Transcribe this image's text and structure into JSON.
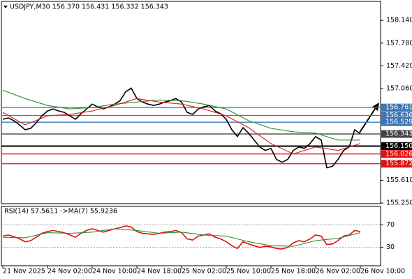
{
  "chart_data": [
    {
      "type": "line",
      "title": "USDJPY,M30  156.370 156.431 156.332 156.343",
      "x": [
        0,
        1,
        2,
        3,
        4,
        5,
        6,
        7,
        8,
        9,
        10,
        11,
        12,
        13,
        14,
        15,
        16,
        17,
        18,
        19,
        20,
        21,
        22,
        23,
        24,
        25,
        26,
        27,
        28,
        29,
        30,
        31,
        32,
        33,
        34,
        35,
        36,
        37,
        38,
        39,
        40,
        41,
        42,
        43,
        44,
        45,
        46,
        47,
        48,
        49,
        50,
        51,
        52,
        53,
        54,
        55,
        56,
        57,
        58,
        59,
        60,
        61,
        62,
        63,
        64
      ],
      "xlim": [
        -0.25,
        67.625
      ],
      "ylim": [
        155.24,
        158.44
      ],
      "yticks": [
        {
          "value": 158.14,
          "label": "158.140"
        },
        {
          "value": 157.78,
          "label": "157.780"
        },
        {
          "value": 157.42,
          "label": "157.420"
        },
        {
          "value": 157.06,
          "label": "157.060"
        },
        {
          "value": 155.61,
          "label": "155.610"
        },
        {
          "value": 155.25,
          "label": "155.250"
        }
      ],
      "levels": [
        {
          "value": 156.761,
          "color": "#3c78b4"
        },
        {
          "value": 156.636,
          "color": "#3c78b4"
        },
        {
          "value": 156.529,
          "color": "#3c78b4"
        },
        {
          "value": 156.343,
          "color": "#444444"
        },
        {
          "value": 156.15,
          "label": "156.150",
          "color": "#000000"
        },
        {
          "value": 156.026,
          "color": "#e01010"
        },
        {
          "value": 155.872,
          "color": "#e01010"
        }
      ],
      "series": [
        {
          "color": "#000000",
          "values": [
            156.575,
            156.596,
            156.553,
            156.487,
            156.41,
            156.432,
            156.52,
            156.629,
            156.706,
            156.739,
            156.706,
            156.684,
            156.629,
            156.575,
            156.662,
            156.739,
            156.815,
            156.772,
            156.739,
            156.772,
            156.815,
            156.87,
            157.012,
            157.067,
            156.903,
            156.848,
            156.815,
            156.794,
            156.815,
            156.848,
            156.87,
            156.903,
            156.848,
            156.684,
            156.651,
            156.739,
            156.772,
            156.794,
            156.706,
            156.662,
            156.575,
            156.41,
            156.301,
            156.443,
            156.356,
            156.246,
            156.137,
            156.082,
            156.115,
            155.94,
            155.896,
            155.94,
            156.082,
            156.137,
            156.115,
            156.191,
            156.301,
            156.246,
            155.808,
            155.83,
            155.94,
            156.082,
            156.137,
            156.41,
            156.343
          ]
        },
        {
          "color": "#2e8b2e",
          "x": [
            0,
            4,
            8,
            12,
            16,
            20,
            24,
            28,
            32,
            36,
            40,
            44,
            48,
            52,
            56,
            60,
            64
          ],
          "values": [
            157.034,
            156.903,
            156.794,
            156.739,
            156.761,
            156.815,
            156.848,
            156.881,
            156.87,
            156.815,
            156.739,
            156.553,
            156.432,
            156.378,
            156.356,
            156.246,
            156.246
          ]
        },
        {
          "color": "#e02020",
          "x": [
            0,
            4,
            8,
            12,
            16,
            20,
            24,
            28,
            32,
            36,
            40,
            44,
            48,
            52,
            56,
            60,
            64
          ],
          "values": [
            156.684,
            156.487,
            156.629,
            156.651,
            156.706,
            156.794,
            156.903,
            156.848,
            156.815,
            156.739,
            156.629,
            156.443,
            156.191,
            156.027,
            156.137,
            156.082,
            156.191
          ]
        }
      ]
    },
    {
      "type": "line",
      "title": "RSI(14) 57.5611 ->MA(7) 55.9236",
      "x": [
        0,
        1,
        2,
        3,
        4,
        5,
        6,
        7,
        8,
        9,
        10,
        11,
        12,
        13,
        14,
        15,
        16,
        17,
        18,
        19,
        20,
        21,
        22,
        23,
        24,
        25,
        26,
        27,
        28,
        29,
        30,
        31,
        32,
        33,
        34,
        35,
        36,
        37,
        38,
        39,
        40,
        41,
        42,
        43,
        44,
        45,
        46,
        47,
        48,
        49,
        50,
        51,
        52,
        53,
        54,
        55,
        56,
        57,
        58,
        59,
        60,
        61,
        62,
        63,
        64
      ],
      "xlim": [
        -0.25,
        67.625
      ],
      "xticks": [
        {
          "value": 0,
          "label": "21 Nov 2025"
        },
        {
          "value": 8,
          "label": "24 Nov 02:00"
        },
        {
          "value": 16,
          "label": "24 Nov 10:00"
        },
        {
          "value": 24,
          "label": "24 Nov 18:00"
        },
        {
          "value": 32,
          "label": "25 Nov 02:00"
        },
        {
          "value": 40,
          "label": "25 Nov 10:00"
        },
        {
          "value": 48,
          "label": "25 Nov 18:00"
        },
        {
          "value": 56,
          "label": "26 Nov 02:00"
        },
        {
          "value": 64,
          "label": "26 Nov 10:00"
        }
      ],
      "ylim": [
        -2.5,
        102.5
      ],
      "yticks": [
        70,
        30
      ],
      "series": [
        {
          "color": "#e01010",
          "values": [
            50,
            52,
            49,
            45,
            40,
            42,
            48,
            55,
            58,
            60,
            58,
            56,
            52,
            48,
            55,
            60,
            63,
            60,
            57,
            60,
            63,
            65,
            68,
            66,
            58,
            55,
            54,
            53,
            55,
            57,
            58,
            60,
            56,
            45,
            43,
            50,
            52,
            54,
            48,
            45,
            40,
            33,
            28,
            40,
            36,
            33,
            30,
            32,
            31,
            28,
            27,
            30,
            38,
            42,
            40,
            45,
            52,
            50,
            35,
            36,
            42,
            50,
            52,
            60,
            58
          ]
        },
        {
          "color": "#2e8b2e",
          "x": [
            0,
            4,
            8,
            12,
            16,
            20,
            24,
            28,
            32,
            36,
            40,
            44,
            48,
            52,
            56,
            60,
            64
          ],
          "values": [
            48,
            47,
            56,
            55,
            57,
            63,
            60,
            55,
            57,
            52,
            50,
            40,
            33,
            32,
            42,
            46,
            56
          ]
        }
      ]
    }
  ]
}
